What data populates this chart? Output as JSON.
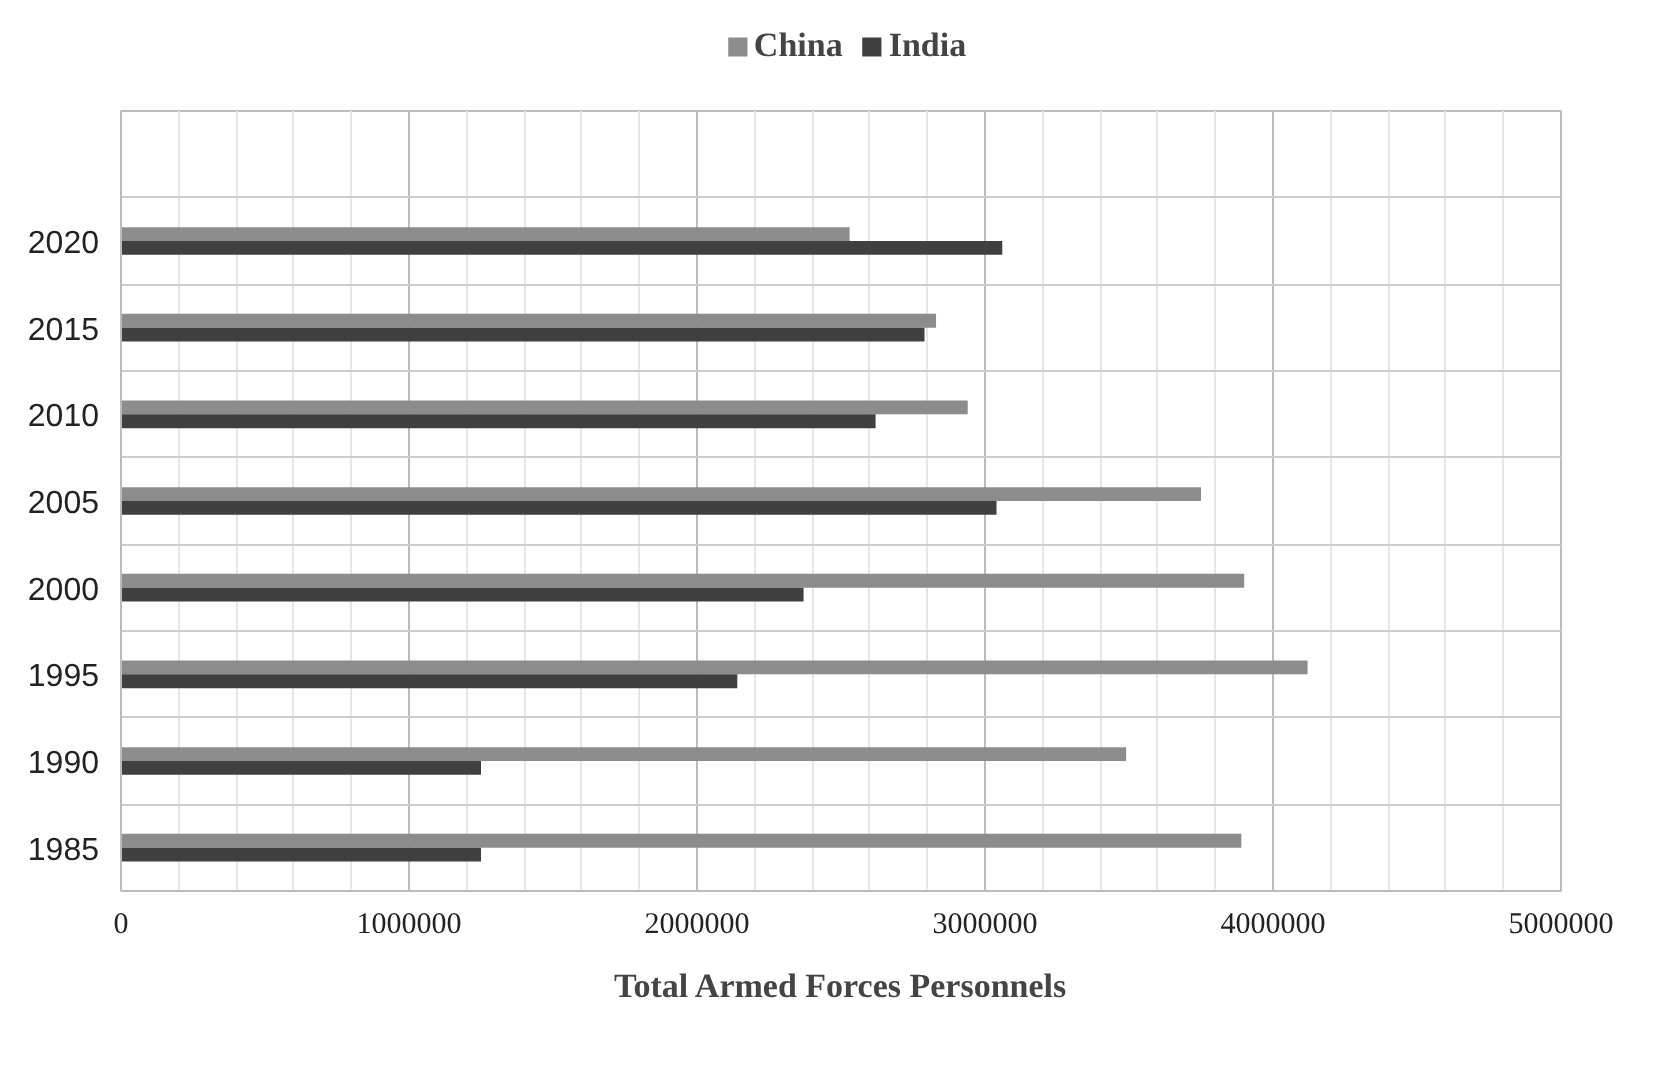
{
  "chart_data": {
    "type": "bar",
    "orientation": "horizontal",
    "xlabel": "Total Armed Forces Personnels",
    "categories": [
      null,
      "2020",
      "2015",
      "2010",
      "2005",
      "2000",
      "1995",
      "1990",
      "1985"
    ],
    "series": [
      {
        "name": "China",
        "color": "#8c8c8c",
        "values": [
          null,
          2530000,
          2830000,
          2940000,
          3750000,
          3900000,
          4120000,
          3490000,
          3890000
        ]
      },
      {
        "name": "India",
        "color": "#404040",
        "values": [
          null,
          3060000,
          2790000,
          2620000,
          3040000,
          2370000,
          2140000,
          1250000,
          1250000
        ]
      }
    ],
    "xlim": [
      0,
      5000000
    ],
    "xticks": [
      0,
      1000000,
      2000000,
      3000000,
      4000000,
      5000000
    ],
    "grid": true,
    "legend": "top"
  }
}
